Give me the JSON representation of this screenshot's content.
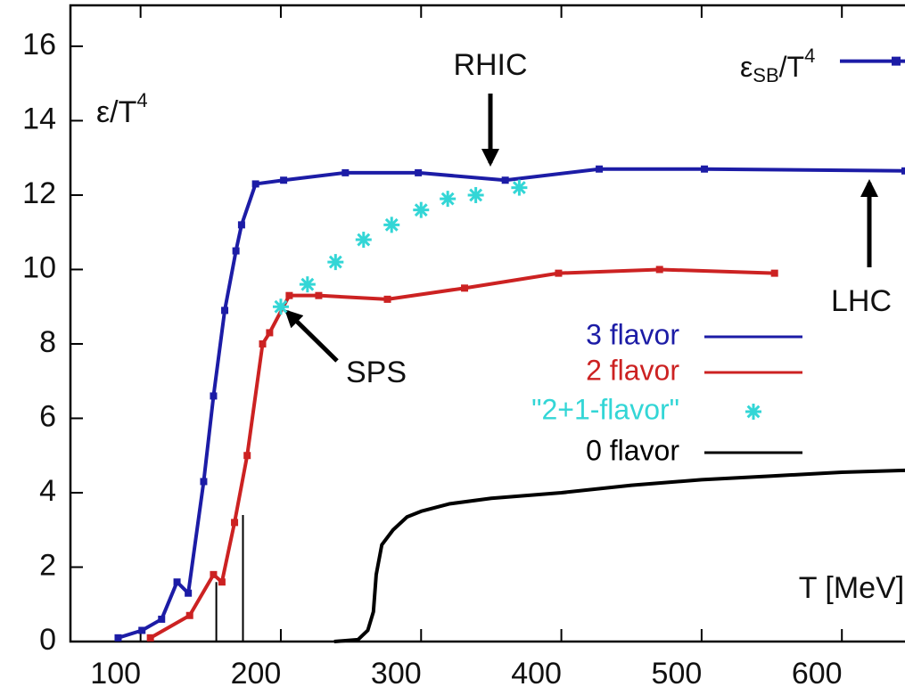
{
  "chart_data": {
    "type": "line",
    "y_label": {
      "base": "ε/T",
      "sup": "4"
    },
    "x_label": "T [MeV]",
    "xlim": [
      50,
      645
    ],
    "ylim": [
      0,
      17.1
    ],
    "xticks": [
      100,
      200,
      300,
      400,
      500,
      600
    ],
    "yticks": [
      0,
      2,
      4,
      6,
      8,
      10,
      12,
      14,
      16
    ],
    "series": [
      {
        "name": "3 flavor",
        "color": "#1c1ca6",
        "mode": "lines+markers",
        "x": [
          84,
          101,
          115,
          126,
          134,
          145,
          152,
          160,
          168,
          172,
          182,
          202,
          246,
          298,
          360,
          427,
          502,
          645
        ],
        "values": [
          0.1,
          0.3,
          0.6,
          1.6,
          1.3,
          4.3,
          6.6,
          8.9,
          10.5,
          11.2,
          12.3,
          12.4,
          12.6,
          12.6,
          12.4,
          12.7,
          12.7,
          12.65
        ]
      },
      {
        "name": "2 flavor",
        "color": "#cc2222",
        "mode": "lines+markers",
        "x": [
          107,
          135,
          152,
          158,
          167,
          176,
          187,
          192,
          206,
          227,
          276,
          331,
          398,
          470,
          552
        ],
        "values": [
          0.1,
          0.7,
          1.8,
          1.6,
          3.2,
          5.0,
          8.0,
          8.3,
          9.3,
          9.3,
          9.2,
          9.5,
          9.9,
          10.0,
          9.9
        ]
      },
      {
        "name": "\"2+1-flavor\"",
        "color": "#33d6d6",
        "mode": "markers",
        "x": [
          200,
          219,
          239,
          259,
          279,
          300,
          319,
          339,
          370
        ],
        "values": [
          9.0,
          9.6,
          10.2,
          10.8,
          11.2,
          11.6,
          11.9,
          12.0,
          12.2
        ]
      },
      {
        "name": "0 flavor",
        "color": "#000000",
        "mode": "lines",
        "x": [
          238,
          255,
          262,
          266,
          268,
          272,
          280,
          290,
          300,
          320,
          350,
          400,
          450,
          500,
          550,
          600,
          645
        ],
        "values": [
          0,
          0.05,
          0.3,
          0.8,
          1.8,
          2.6,
          3.0,
          3.35,
          3.5,
          3.7,
          3.85,
          4.0,
          4.2,
          4.35,
          4.45,
          4.55,
          4.6
        ]
      }
    ],
    "tc_lines": [
      {
        "x": 154,
        "y": 1.6
      },
      {
        "x": 173,
        "y": 3.4
      }
    ],
    "sb_label": {
      "base": "ε",
      "sub": "SB",
      "mid": "/T",
      "sup": "4"
    },
    "sb_value": 15.6,
    "annotations": {
      "rhic": "RHIC",
      "lhc": "LHC",
      "sps": "SPS"
    }
  }
}
